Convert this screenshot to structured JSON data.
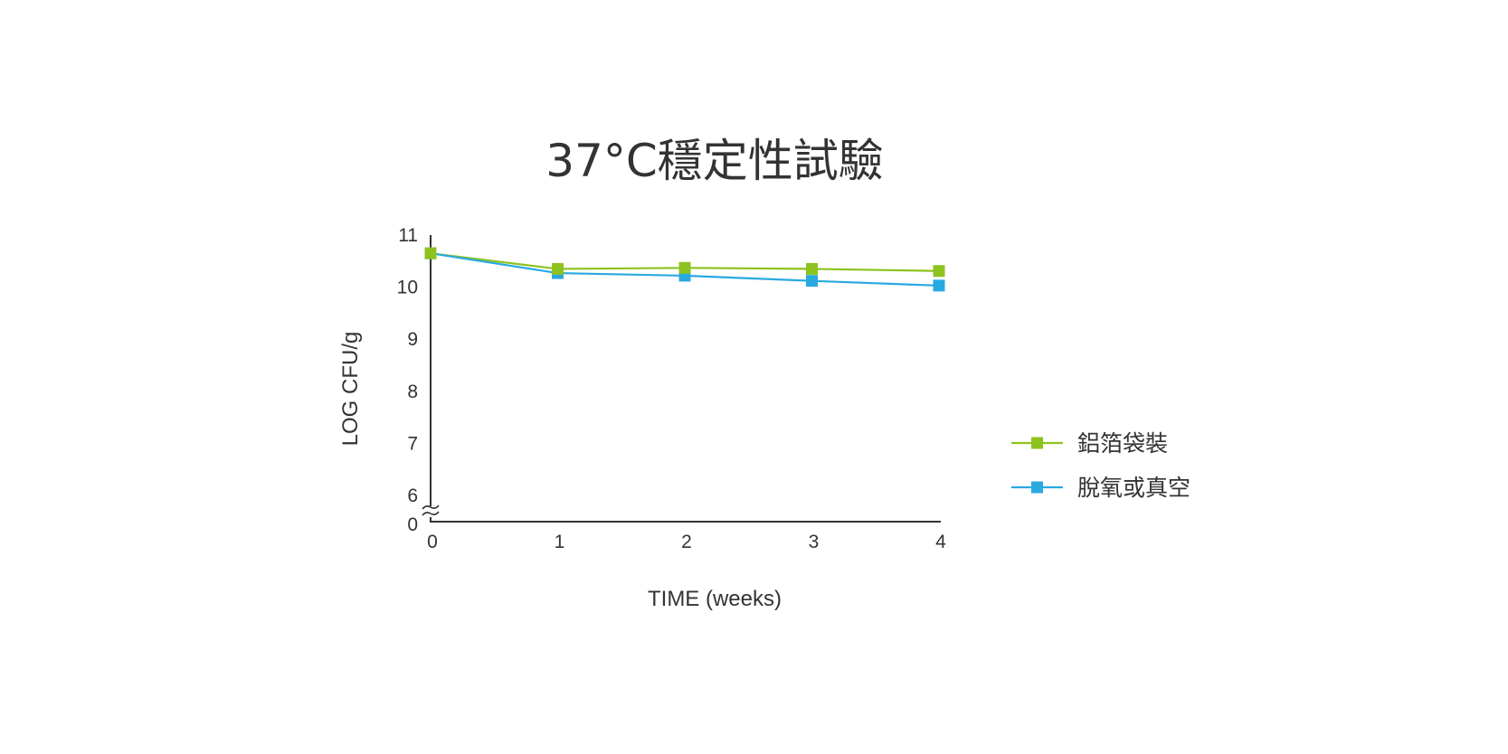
{
  "chart_data": {
    "type": "line",
    "title": "37°C穩定性試驗",
    "xlabel": "TIME (weeks)",
    "ylabel": "LOG CFU/g",
    "x": [
      0,
      1,
      2,
      3,
      4
    ],
    "x_ticks": [
      "0",
      "1",
      "2",
      "3",
      "4"
    ],
    "y_ticks": [
      "0",
      "6",
      "7",
      "8",
      "9",
      "10",
      "11"
    ],
    "ylim": [
      6,
      11
    ],
    "y_axis_break": "between 0 and 6",
    "grid": false,
    "legend_position": "right",
    "series": [
      {
        "name": "鋁箔袋裝",
        "color": "#8dc21f",
        "marker": "square",
        "values": [
          10.65,
          10.35,
          10.37,
          10.35,
          10.31
        ]
      },
      {
        "name": "脫氧或真空",
        "color": "#29a9e0",
        "marker": "square",
        "values": [
          10.65,
          10.27,
          10.22,
          10.12,
          10.03
        ]
      }
    ]
  }
}
